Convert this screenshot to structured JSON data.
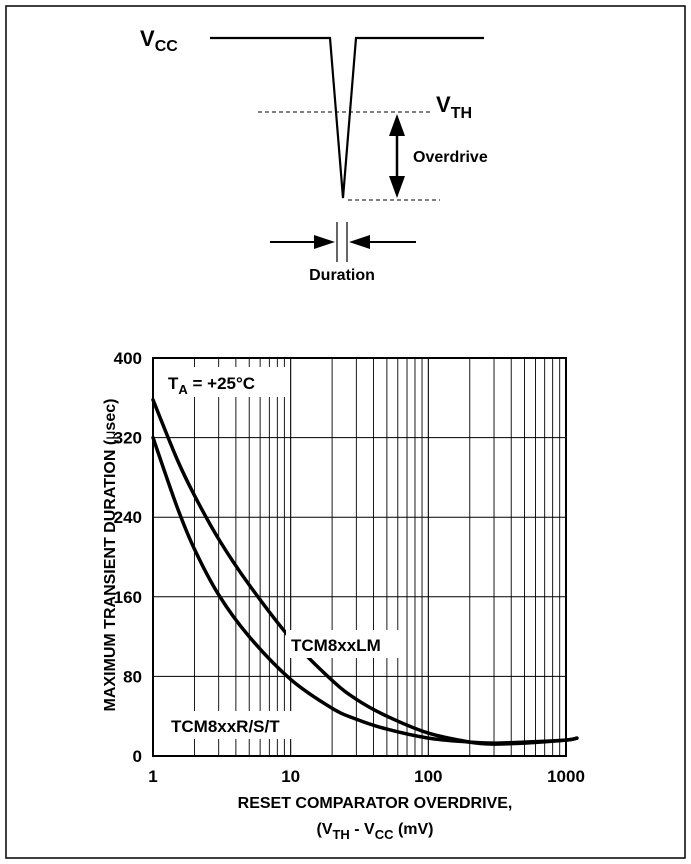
{
  "diagram": {
    "vcc_label": "V",
    "vcc_sub": "CC",
    "vth_label": "V",
    "vth_sub": "TH",
    "overdrive_label": "Overdrive",
    "duration_label": "Duration"
  },
  "chart_data": {
    "type": "line",
    "title": "",
    "annotation": "T",
    "annotation_sub": "A",
    "annotation_rest": " = +25°C",
    "xscale": "log",
    "xlim": [
      1,
      1000
    ],
    "ylim": [
      0,
      400
    ],
    "x_ticks": [
      1,
      10,
      100,
      1000
    ],
    "x_tick_labels": [
      "1",
      "10",
      "100",
      "1000"
    ],
    "y_ticks": [
      0,
      80,
      160,
      240,
      320,
      400
    ],
    "y_tick_labels": [
      "0",
      "80",
      "160",
      "240",
      "320",
      "400"
    ],
    "ylabel_pre": "MAXIMUM TRANSIENT DURATION (",
    "ylabel_mu": "μ",
    "ylabel_post": "sec)",
    "xlabel_line1": "RESET COMPARATOR OVERDRIVE,",
    "xlabel_line2_a": "(V",
    "xlabel_line2_sub1": "TH",
    "xlabel_line2_b": " - V",
    "xlabel_line2_sub2": "CC",
    "xlabel_line2_c": " (mV)",
    "grid": true,
    "series": [
      {
        "name": "TCM8xxLM",
        "x": [
          1,
          1.5,
          2,
          3,
          5,
          10,
          20,
          30,
          50,
          100,
          200,
          300,
          500,
          1000,
          1200
        ],
        "y": [
          358,
          298,
          262,
          218,
          172,
          118,
          76,
          57,
          40,
          23,
          14,
          12,
          13,
          16,
          18
        ]
      },
      {
        "name": "TCM8xxR/S/T",
        "x": [
          1,
          1.5,
          2,
          3,
          5,
          10,
          20,
          30,
          50,
          100,
          200,
          300,
          500,
          1000,
          1200
        ],
        "y": [
          320,
          250,
          208,
          162,
          120,
          77,
          48,
          37,
          27,
          18,
          14,
          13,
          14,
          16,
          18
        ]
      }
    ]
  }
}
